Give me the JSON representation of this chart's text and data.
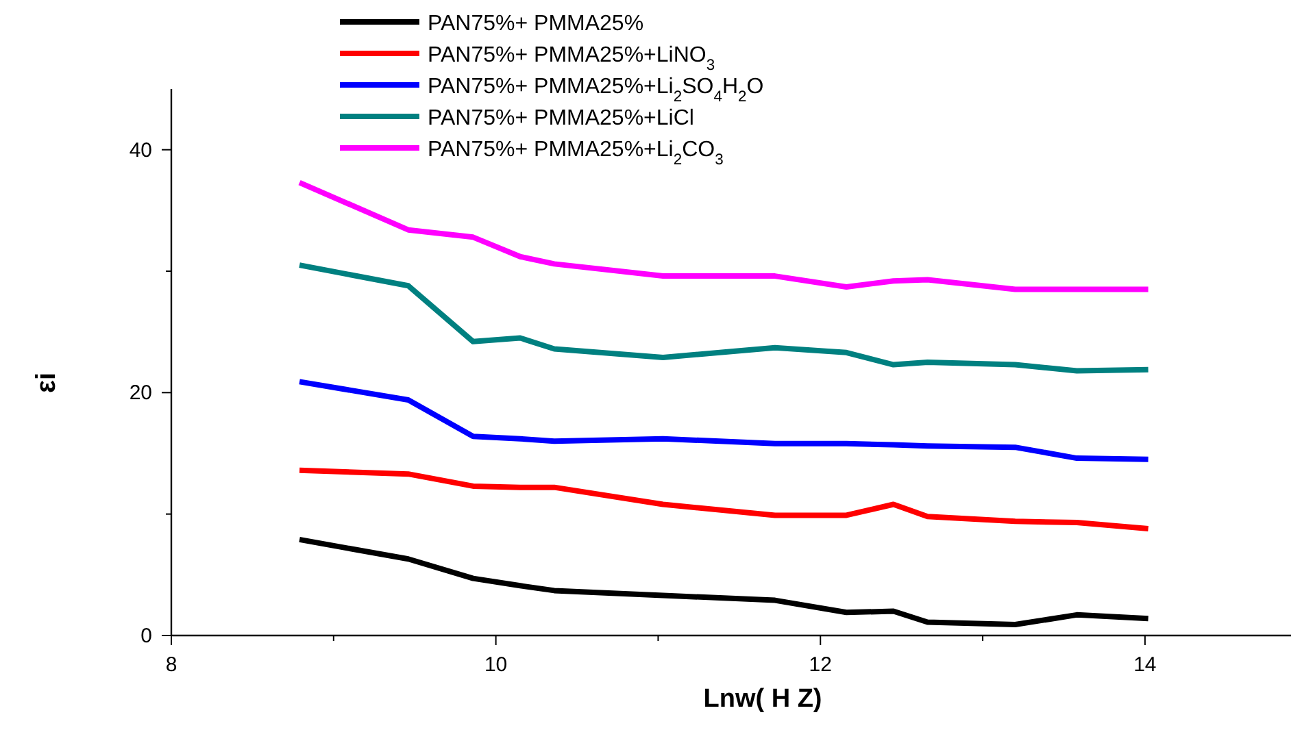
{
  "chart_data": {
    "type": "line",
    "xlabel": "Lnw( H Z)",
    "ylabel": "εi",
    "xlim": [
      8,
      14.9
    ],
    "xticks": [
      8,
      {
        "value": 9,
        "label": null
      },
      10,
      {
        "value": 11,
        "label": null
      },
      12,
      {
        "value": 13,
        "label": null
      },
      14
    ],
    "ylim": [
      0,
      45
    ],
    "yticks": [
      0,
      {
        "value": 10,
        "label": null
      },
      20,
      {
        "value": 30,
        "label": null
      },
      40
    ],
    "x": [
      8.79,
      9.46,
      9.86,
      10.15,
      10.36,
      11.03,
      11.72,
      12.16,
      12.45,
      12.66,
      13.2,
      13.58,
      14.02
    ],
    "legend": "top",
    "grid": false,
    "marker": "none",
    "line_style": "solid",
    "series": [
      {
        "name": "PAN75%+ PMMA25%",
        "color": "#000000",
        "values": [
          7.9,
          6.3,
          4.7,
          4.1,
          3.7,
          3.3,
          2.9,
          1.9,
          2.0,
          1.1,
          0.9,
          1.7,
          1.4
        ]
      },
      {
        "name": "PAN75%+ PMMA25%+LiNO$_{3}$",
        "color": "#ff0000",
        "values": [
          13.6,
          13.3,
          12.3,
          12.2,
          12.2,
          10.8,
          9.9,
          9.9,
          10.8,
          9.8,
          9.4,
          9.3,
          8.8
        ]
      },
      {
        "name": "PAN75%+ PMMA25%+Li$_{2}$SO$_{4}$H$_{2}$O",
        "color": "#0000ff",
        "values": [
          20.9,
          19.4,
          16.4,
          16.2,
          16.0,
          16.2,
          15.8,
          15.8,
          15.7,
          15.6,
          15.5,
          14.6,
          14.5
        ]
      },
      {
        "name": "PAN75%+  PMMA25%+LiCl",
        "color": "#008080",
        "values": [
          30.5,
          28.8,
          24.2,
          24.5,
          23.6,
          22.9,
          23.7,
          23.3,
          22.3,
          22.5,
          22.3,
          21.8,
          21.9
        ]
      },
      {
        "name": "PAN75%+ PMMA25%+Li$_{2}$CO$_{3}$",
        "color": "#ff00ff",
        "values": [
          37.3,
          33.4,
          32.8,
          31.2,
          30.6,
          29.6,
          29.6,
          28.7,
          29.2,
          29.3,
          28.5,
          28.5,
          28.5
        ]
      }
    ]
  }
}
